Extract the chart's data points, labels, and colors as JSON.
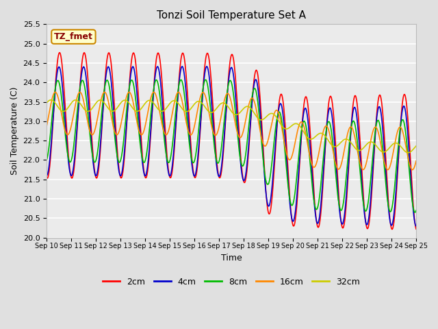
{
  "title": "Tonzi Soil Temperature Set A",
  "xlabel": "Time",
  "ylabel": "Soil Temperature (C)",
  "ylim": [
    20.0,
    25.5
  ],
  "yticks": [
    20.0,
    20.5,
    21.0,
    21.5,
    22.0,
    22.5,
    23.0,
    23.5,
    24.0,
    24.5,
    25.0,
    25.5
  ],
  "annotation": "TZ_fmet",
  "x_tick_labels": [
    "Sep 10",
    "Sep 11",
    "Sep 12",
    "Sep 13",
    "Sep 14",
    "Sep 15",
    "Sep 16",
    "Sep 17",
    "Sep 18",
    "Sep 19",
    "Sep 20",
    "Sep 21",
    "Sep 22",
    "Sep 23",
    "Sep 24",
    "Sep 25"
  ],
  "series_labels": [
    "2cm",
    "4cm",
    "8cm",
    "16cm",
    "32cm"
  ],
  "series_colors": [
    "#ff0000",
    "#0000cc",
    "#00bb00",
    "#ff8800",
    "#cccc00"
  ],
  "line_width": 1.2,
  "background_color": "#e0e0e0",
  "plot_bg_color": "#ebebeb",
  "n_days": 15,
  "n_points_per_day": 96
}
